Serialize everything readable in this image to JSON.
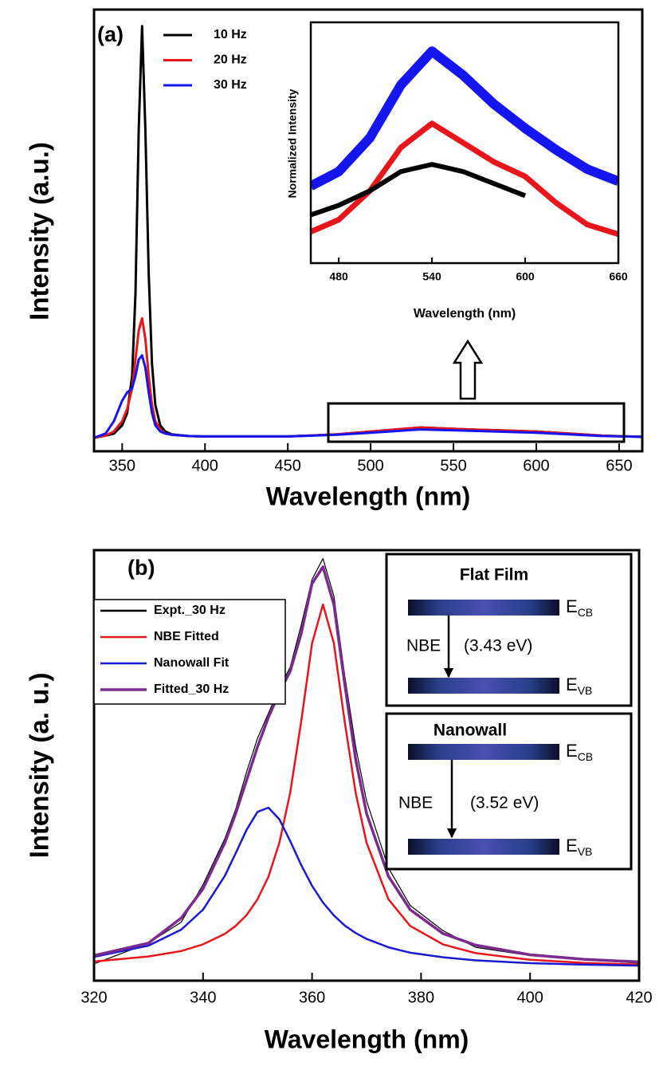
{
  "chart_data": [
    {
      "type": "line",
      "panel_label": "(a)",
      "x_label": "Wavelength (nm)",
      "y_label": "Intensity (a.u.)",
      "x": [
        333,
        340,
        345,
        350,
        353,
        356,
        358,
        360,
        362,
        364,
        366,
        368,
        370,
        373,
        376,
        380,
        390,
        400,
        450,
        480,
        500,
        530,
        560,
        600,
        640,
        664
      ],
      "xlim": [
        333,
        664
      ],
      "xticks": [
        350,
        400,
        450,
        500,
        550,
        600,
        650
      ],
      "ylim": [
        -0.033,
        1.04
      ],
      "series": [
        {
          "name": "10 Hz",
          "color": "#000000",
          "values": [
            0,
            0.005,
            0.01,
            0.03,
            0.06,
            0.15,
            0.35,
            0.75,
            1.0,
            0.75,
            0.4,
            0.18,
            0.08,
            0.03,
            0.015,
            0.008,
            0.004,
            0.003,
            0.003,
            0.008,
            0.015,
            0.025,
            0.02,
            0.015,
            0.005,
            0.002
          ]
        },
        {
          "name": "20 Hz",
          "color": "#e8161b",
          "values": [
            0,
            0.005,
            0.015,
            0.04,
            0.07,
            0.12,
            0.19,
            0.26,
            0.29,
            0.24,
            0.15,
            0.08,
            0.04,
            0.02,
            0.01,
            0.007,
            0.004,
            0.003,
            0.003,
            0.008,
            0.015,
            0.025,
            0.02,
            0.015,
            0.005,
            0.002
          ]
        },
        {
          "name": "30 Hz",
          "color": "#1515f0",
          "values": [
            0,
            0.01,
            0.04,
            0.09,
            0.11,
            0.12,
            0.15,
            0.19,
            0.2,
            0.17,
            0.11,
            0.06,
            0.03,
            0.015,
            0.01,
            0.007,
            0.004,
            0.003,
            0.003,
            0.007,
            0.012,
            0.02,
            0.017,
            0.012,
            0.004,
            0.002
          ]
        }
      ]
    },
    {
      "type": "line",
      "x_label": "Wavelength (nm)",
      "y_label": "Normalized Intensity",
      "x": [
        462,
        480,
        500,
        520,
        540,
        560,
        580,
        600,
        620,
        640,
        660
      ],
      "xlim": [
        462,
        660
      ],
      "xticks": [
        480,
        540,
        600,
        660
      ],
      "ylim": [
        0,
        1
      ],
      "series": [
        {
          "color": "#1515f0",
          "values": [
            0.32,
            0.38,
            0.52,
            0.74,
            0.88,
            0.78,
            0.66,
            0.56,
            0.47,
            0.39,
            0.34
          ]
        },
        {
          "color": "#e8161b",
          "values": [
            0.13,
            0.18,
            0.3,
            0.48,
            0.58,
            0.5,
            0.42,
            0.36,
            0.25,
            0.16,
            0.12
          ]
        },
        {
          "color": "#000000",
          "values": [
            0.2,
            0.24,
            0.3,
            0.38,
            0.41,
            0.38,
            0.33,
            0.28,
            null,
            null,
            null
          ]
        }
      ]
    },
    {
      "type": "line",
      "panel_label": "(b)",
      "x_label": "Wavelength (nm)",
      "y_label": "Intensity (a. u.)",
      "x": [
        320,
        330,
        336,
        340,
        344,
        346,
        348,
        350,
        352,
        354,
        356,
        358,
        360,
        362,
        364,
        366,
        368,
        370,
        374,
        378,
        384,
        390,
        400,
        410,
        420
      ],
      "xlim": [
        320,
        420
      ],
      "xticks": [
        320,
        340,
        360,
        380,
        400,
        420
      ],
      "ylim": [
        -0.03,
        1.0
      ],
      "series": [
        {
          "name": "Expt._30 Hz",
          "color": "#000000",
          "values": [
            0.01,
            0.06,
            0.11,
            0.2,
            0.31,
            0.38,
            0.47,
            0.55,
            0.61,
            0.67,
            0.72,
            0.82,
            0.93,
            0.98,
            0.89,
            0.7,
            0.53,
            0.4,
            0.24,
            0.15,
            0.09,
            0.05,
            0.03,
            0.02,
            0.012
          ]
        },
        {
          "name": "NBE Fitted",
          "color": "#e8161b",
          "values": [
            0.016,
            0.028,
            0.041,
            0.057,
            0.082,
            0.101,
            0.127,
            0.165,
            0.219,
            0.3,
            0.42,
            0.589,
            0.777,
            0.87,
            0.777,
            0.589,
            0.42,
            0.3,
            0.165,
            0.101,
            0.057,
            0.036,
            0.02,
            0.0125,
            0.0086
          ]
        },
        {
          "name": "Nanowall Fit",
          "color": "#1a1ad0",
          "values": [
            0.027,
            0.054,
            0.092,
            0.14,
            0.221,
            0.275,
            0.331,
            0.374,
            0.384,
            0.356,
            0.304,
            0.247,
            0.197,
            0.157,
            0.126,
            0.102,
            0.084,
            0.07,
            0.05,
            0.037,
            0.026,
            0.0187,
            0.012,
            0.0083,
            0.0061
          ]
        },
        {
          "name": "Fitted_30 Hz",
          "color": "#7b2a8e",
          "values": [
            0.03,
            0.06,
            0.12,
            0.19,
            0.3,
            0.37,
            0.45,
            0.53,
            0.6,
            0.66,
            0.71,
            0.8,
            0.92,
            0.96,
            0.87,
            0.68,
            0.5,
            0.37,
            0.22,
            0.14,
            0.083,
            0.055,
            0.032,
            0.021,
            0.015
          ]
        }
      ]
    }
  ],
  "band_diagrams": [
    {
      "title": "Flat Film",
      "upper": {
        "base": "E",
        "sub": "CB"
      },
      "transition": "NBE",
      "energy": "(3.43 eV)",
      "lower": {
        "base": "E",
        "sub": "VB"
      }
    },
    {
      "title": "Nanowall",
      "upper": {
        "base": "E",
        "sub": "CB"
      },
      "transition": "NBE",
      "energy": "(3.52 eV)",
      "lower": {
        "base": "E",
        "sub": "VB"
      }
    }
  ]
}
